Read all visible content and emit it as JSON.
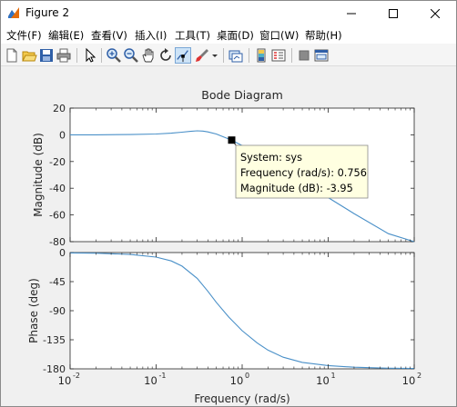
{
  "window": {
    "title": "Figure 2"
  },
  "menu": {
    "items": [
      "文件(F)",
      "编辑(E)",
      "查看(V)",
      "插入(I)",
      "工具(T)",
      "桌面(D)",
      "窗口(W)",
      "帮助(H)"
    ]
  },
  "toolbar": {
    "buttons": [
      "new-figure",
      "open-file",
      "save",
      "print",
      "edit-plot",
      "zoom-in",
      "zoom-out",
      "pan",
      "rotate-3d",
      "data-cursor",
      "brush",
      "link-plot",
      "insert-colorbar",
      "insert-legend",
      "hide-plot-tools",
      "show-plot-tools"
    ],
    "active": "data-cursor"
  },
  "chart_data": {
    "type": "line",
    "title": "Bode Diagram",
    "xlabel": "Frequency  (rad/s)",
    "xscale": "log",
    "xlim": [
      0.01,
      100
    ],
    "xticks": [
      "10",
      "10",
      "10",
      "10",
      "10"
    ],
    "xtick_exponents": [
      "-2",
      "-1",
      "0",
      "1",
      "2"
    ],
    "grid": false,
    "line_color": "#4a90c8",
    "subplots": [
      {
        "name": "magnitude",
        "ylabel": "Magnitude (dB)",
        "ylim": [
          -80,
          20
        ],
        "yticks": [
          "20",
          "0",
          "-20",
          "-40",
          "-60",
          "-80"
        ],
        "ytick_values": [
          20,
          0,
          -20,
          -40,
          -60,
          -80
        ],
        "x": [
          0.01,
          0.02,
          0.05,
          0.1,
          0.15,
          0.2,
          0.25,
          0.3,
          0.35,
          0.4,
          0.5,
          0.6,
          0.756,
          1,
          1.5,
          2,
          3,
          5,
          10,
          20,
          50,
          100
        ],
        "y": [
          0,
          0,
          0.2,
          0.6,
          1.2,
          2.0,
          2.6,
          3.0,
          2.8,
          2.2,
          0.6,
          -1.4,
          -3.95,
          -8,
          -14.5,
          -19.5,
          -26.5,
          -35,
          -47,
          -59,
          -74,
          -82
        ]
      },
      {
        "name": "phase",
        "ylabel": "Phase (deg)",
        "ylim": [
          -180,
          0
        ],
        "yticks": [
          "0",
          "-45",
          "-90",
          "-135",
          "-180"
        ],
        "ytick_values": [
          0,
          -45,
          -90,
          -135,
          -180
        ],
        "x": [
          0.01,
          0.02,
          0.05,
          0.1,
          0.15,
          0.2,
          0.3,
          0.4,
          0.5,
          0.7,
          1,
          1.5,
          2,
          3,
          5,
          10,
          20,
          50,
          100
        ],
        "y": [
          -0.5,
          -1,
          -3,
          -7,
          -13,
          -21,
          -40,
          -60,
          -77,
          -100,
          -121,
          -140,
          -151,
          -162,
          -170,
          -175,
          -177.5,
          -179,
          -179.5
        ]
      }
    ],
    "datatip": {
      "x": 0.756,
      "y": -3.95,
      "lines": [
        "System: sys",
        "Frequency (rad/s): 0.756",
        "Magnitude (dB): -3.95"
      ]
    }
  }
}
